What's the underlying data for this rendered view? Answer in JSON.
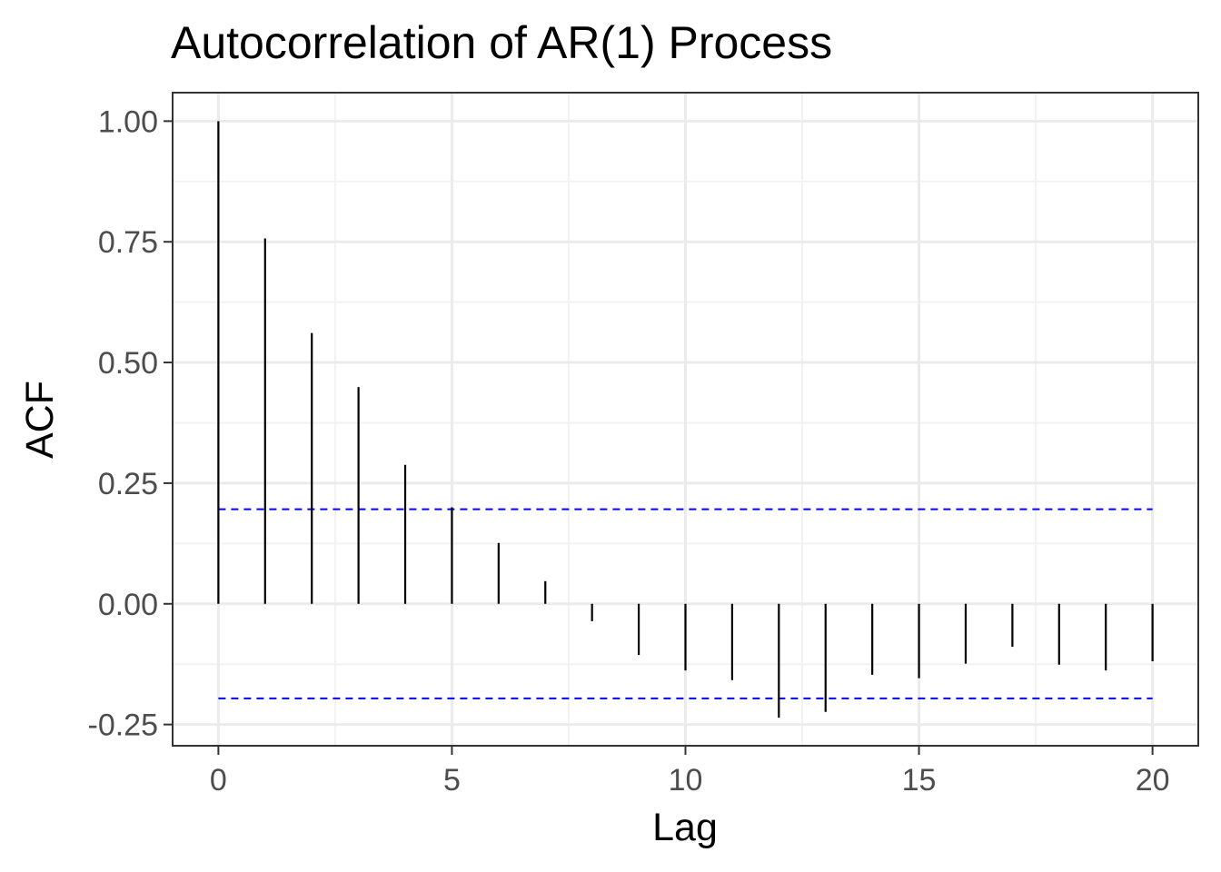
{
  "chart_data": {
    "type": "bar",
    "title": "Autocorrelation of AR(1) Process",
    "xlabel": "Lag",
    "ylabel": "ACF",
    "x": [
      0,
      1,
      2,
      3,
      4,
      5,
      6,
      7,
      8,
      9,
      10,
      11,
      12,
      13,
      14,
      15,
      16,
      17,
      18,
      19,
      20
    ],
    "values": [
      1.0,
      0.757,
      0.561,
      0.449,
      0.288,
      0.2,
      0.126,
      0.047,
      -0.036,
      -0.106,
      -0.138,
      -0.158,
      -0.236,
      -0.224,
      -0.147,
      -0.154,
      -0.124,
      -0.089,
      -0.126,
      -0.138,
      -0.119
    ],
    "xlim": [
      -0.98,
      20.98
    ],
    "ylim": [
      -0.294,
      1.059
    ],
    "xticks": [
      0,
      5,
      10,
      15,
      20
    ],
    "xtick_labels": [
      "0",
      "5",
      "10",
      "15",
      "20"
    ],
    "yticks": [
      -0.25,
      0,
      0.25,
      0.5,
      0.75,
      1.0
    ],
    "ytick_labels": [
      "-0.25",
      "0.00",
      "0.25",
      "0.50",
      "0.75",
      "1.00"
    ],
    "confidence_bounds": [
      0.196,
      -0.196
    ],
    "bound_xrange": [
      0,
      20
    ],
    "grid": true,
    "colors": {
      "bars": "#000000",
      "bounds": "#0000ff",
      "grid_major": "#ebebeb",
      "grid_minor": "#f2f2f2",
      "panel_border": "#333333"
    }
  }
}
